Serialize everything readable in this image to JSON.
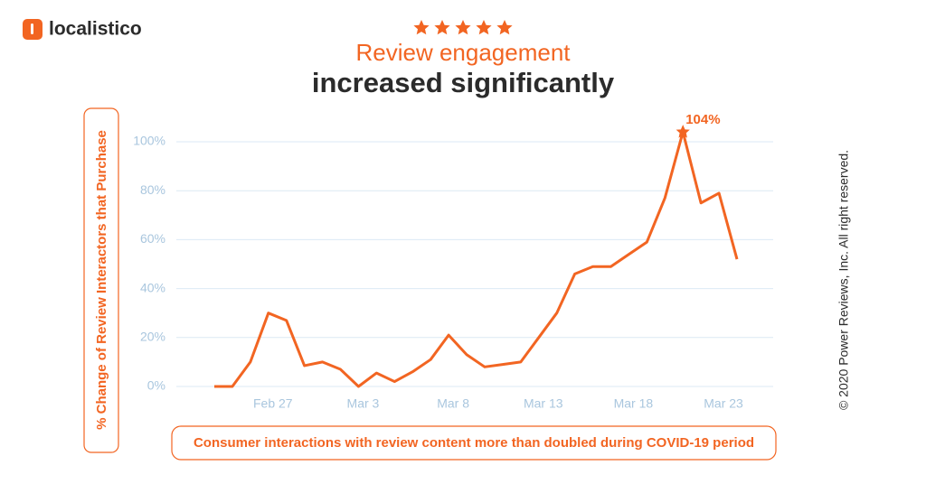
{
  "logo": "localistico",
  "chart_data": {
    "type": "line",
    "title": "Review engagement",
    "subtitle": "increased significantly",
    "y_label": "% Change of Review Interactors that Purchase",
    "caption": "Consumer interactions with review content more than doubled during COVID-19 period",
    "copyright": "© 2020 Power Reviews, Inc. All right reserved.",
    "categories": [
      null,
      null,
      null,
      "Feb 27",
      null,
      null,
      null,
      null,
      "Mar 3",
      null,
      null,
      null,
      null,
      "Mar 8",
      null,
      null,
      null,
      null,
      "Mar 13",
      null,
      null,
      null,
      null,
      "Mar 18",
      null,
      null,
      null,
      null,
      "Mar 23",
      null
    ],
    "values": [
      0,
      0,
      10,
      30,
      27,
      8.5,
      10,
      7,
      0,
      5.5,
      2,
      6,
      11,
      21,
      13,
      8,
      9,
      10,
      20,
      30,
      46,
      49,
      49,
      54,
      59,
      77,
      104,
      75,
      79,
      52
    ],
    "value_labels": [
      null,
      null,
      null,
      null,
      null,
      null,
      null,
      null,
      null,
      null,
      null,
      null,
      null,
      null,
      null,
      null,
      null,
      null,
      null,
      null,
      null,
      null,
      null,
      null,
      null,
      null,
      "104%",
      null,
      null,
      null
    ],
    "color": "#f26522",
    "ylim": [
      0,
      100
    ],
    "yticks": [
      {
        "value": 0,
        "label": "0%"
      },
      {
        "value": 20,
        "label": "20%"
      },
      {
        "value": 40,
        "label": "40%"
      },
      {
        "value": 60,
        "label": "60%"
      },
      {
        "value": 80,
        "label": "80%"
      },
      {
        "value": 100,
        "label": "100%"
      }
    ],
    "grid": true
  }
}
